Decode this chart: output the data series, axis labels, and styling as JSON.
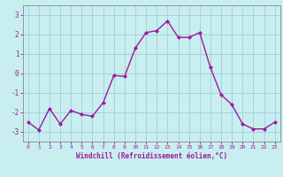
{
  "x": [
    0,
    1,
    2,
    3,
    4,
    5,
    6,
    7,
    8,
    9,
    10,
    11,
    12,
    13,
    14,
    15,
    16,
    17,
    18,
    19,
    20,
    21,
    22,
    23
  ],
  "y": [
    -2.5,
    -2.9,
    -1.8,
    -2.6,
    -1.9,
    -2.1,
    -2.2,
    -1.5,
    -0.1,
    -0.15,
    1.3,
    2.1,
    2.2,
    2.7,
    1.85,
    1.85,
    2.1,
    0.3,
    -1.1,
    -1.6,
    -2.6,
    -2.85,
    -2.85,
    -2.5
  ],
  "line_color": "#9b1a9b",
  "marker": "D",
  "marker_size": 2.0,
  "bg_color": "#c8eef0",
  "grid_color": "#a0d0d8",
  "xlabel": "Windchill (Refroidissement éolien,°C)",
  "xlim": [
    -0.5,
    23.5
  ],
  "ylim": [
    -3.5,
    3.5
  ],
  "yticks": [
    -3,
    -2,
    -1,
    0,
    1,
    2,
    3
  ],
  "xticks": [
    0,
    1,
    2,
    3,
    4,
    5,
    6,
    7,
    8,
    9,
    10,
    11,
    12,
    13,
    14,
    15,
    16,
    17,
    18,
    19,
    20,
    21,
    22,
    23
  ],
  "tick_color": "#9b1a9b",
  "axis_color": "#888888",
  "linewidth": 1.0
}
